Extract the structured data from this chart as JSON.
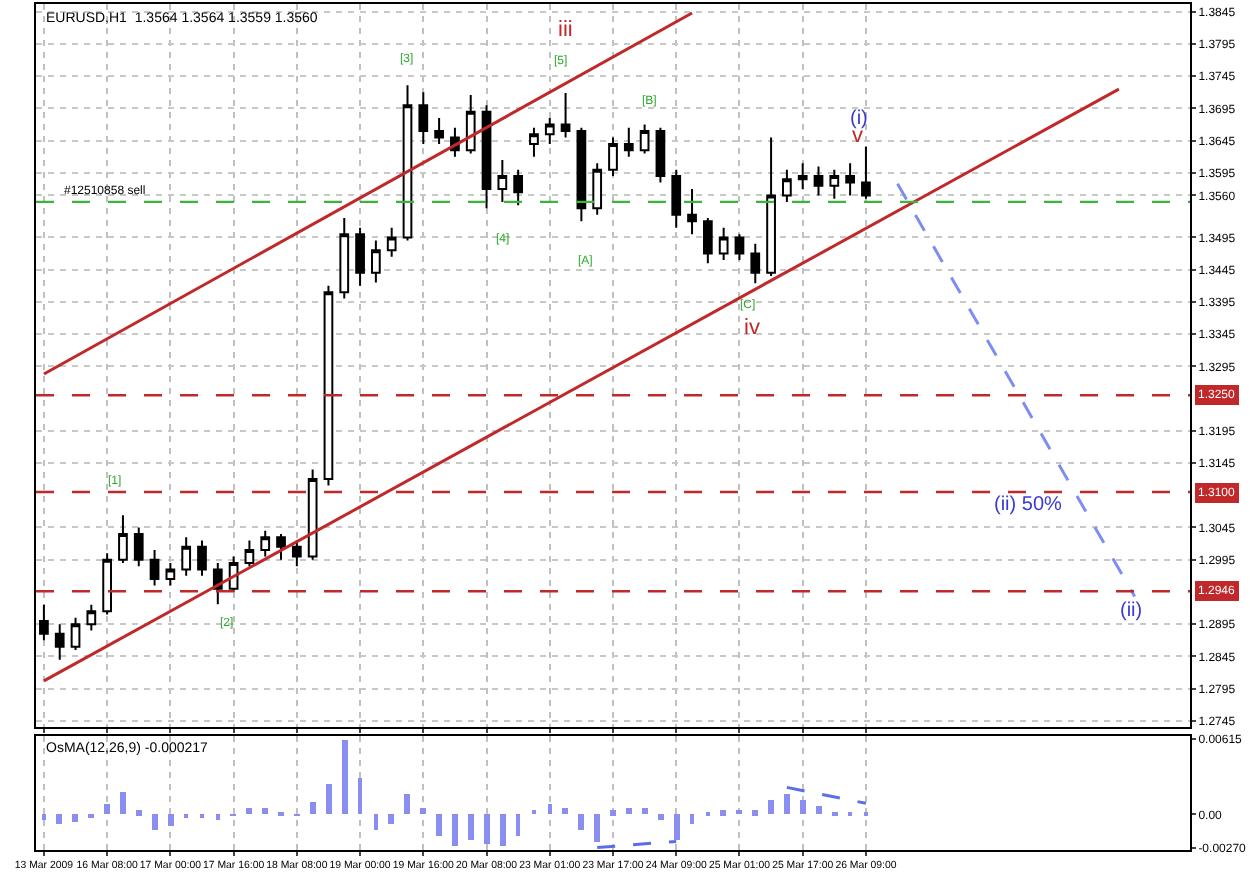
{
  "chart_data": [
    {
      "type": "candlestick",
      "title": "EURUSD,H1  1.3564 1.3564 1.3559 1.3560",
      "categories": [
        "13 Mar 2009",
        null,
        null,
        null,
        "16 Mar 08:00",
        null,
        null,
        null,
        "17 Mar 00:00",
        null,
        null,
        null,
        "17 Mar 16:00",
        null,
        null,
        null,
        "18 Mar 08:00",
        null,
        null,
        null,
        "19 Mar 00:00",
        null,
        null,
        null,
        "19 Mar 16:00",
        null,
        null,
        null,
        "20 Mar 08:00",
        null,
        null,
        null,
        "23 Mar 01:00",
        null,
        null,
        null,
        "23 Mar 17:00",
        null,
        null,
        null,
        "24 Mar 09:00",
        null,
        null,
        null,
        "25 Mar 01:00",
        null,
        null,
        null,
        "25 Mar 17:00",
        null,
        null,
        null,
        "26 Mar 09:00",
        null,
        null,
        null,
        null,
        null,
        null,
        null,
        null,
        null,
        null,
        null,
        null,
        null,
        null,
        null,
        null,
        null,
        null,
        null,
        null
      ],
      "series": [
        {
          "color": "#000000",
          "ohlc": [
            [
              1.29,
              1.2925,
              1.287,
              1.288
            ],
            [
              1.288,
              1.2895,
              1.284,
              1.286
            ],
            [
              1.286,
              1.2905,
              1.2855,
              1.2895
            ],
            [
              1.2895,
              1.2925,
              1.2885,
              1.2915
            ],
            [
              1.2915,
              1.3005,
              1.291,
              1.2995
            ],
            [
              1.2995,
              1.3064,
              1.299,
              1.3035
            ],
            [
              1.3035,
              1.3045,
              1.2985,
              1.2995
            ],
            [
              1.2995,
              1.301,
              1.2955,
              1.2965
            ],
            [
              1.2965,
              1.299,
              1.2955,
              1.298
            ],
            [
              1.298,
              1.303,
              1.297,
              1.3015
            ],
            [
              1.3015,
              1.3025,
              1.297,
              1.298
            ],
            [
              1.298,
              1.299,
              1.2926,
              1.295
            ],
            [
              1.295,
              1.3,
              1.2945,
              1.299
            ],
            [
              1.299,
              1.3025,
              1.2985,
              1.301
            ],
            [
              1.301,
              1.304,
              1.3,
              1.303
            ],
            [
              1.303,
              1.3035,
              1.2995,
              1.3015
            ],
            [
              1.3015,
              1.3025,
              1.2985,
              1.3
            ],
            [
              1.3,
              1.3135,
              1.2995,
              1.312
            ],
            [
              1.312,
              1.342,
              1.311,
              1.341
            ],
            [
              1.341,
              1.3525,
              1.34,
              1.35
            ],
            [
              1.35,
              1.351,
              1.342,
              1.344
            ],
            [
              1.344,
              1.349,
              1.3425,
              1.3475
            ],
            [
              1.3475,
              1.351,
              1.3465,
              1.3495
            ],
            [
              1.3495,
              1.3731,
              1.349,
              1.37
            ],
            [
              1.37,
              1.372,
              1.364,
              1.366
            ],
            [
              1.366,
              1.368,
              1.364,
              1.365
            ],
            [
              1.365,
              1.3665,
              1.362,
              1.363
            ],
            [
              1.363,
              1.3716,
              1.3625,
              1.369
            ],
            [
              1.369,
              1.37,
              1.354,
              1.357
            ],
            [
              1.357,
              1.3615,
              1.355,
              1.359
            ],
            [
              1.359,
              1.36,
              1.3545,
              1.3565
            ],
            [
              1.364,
              1.3665,
              1.362,
              1.3655
            ],
            [
              1.3655,
              1.368,
              1.364,
              1.367
            ],
            [
              1.367,
              1.3719,
              1.365,
              1.366
            ],
            [
              1.366,
              1.3665,
              1.352,
              1.354
            ],
            [
              1.354,
              1.361,
              1.353,
              1.36
            ],
            [
              1.36,
              1.365,
              1.359,
              1.364
            ],
            [
              1.364,
              1.3665,
              1.362,
              1.363
            ],
            [
              1.363,
              1.367,
              1.3625,
              1.366
            ],
            [
              1.366,
              1.3665,
              1.358,
              1.359
            ],
            [
              1.359,
              1.36,
              1.351,
              1.353
            ],
            [
              1.353,
              1.357,
              1.35,
              1.352
            ],
            [
              1.352,
              1.3525,
              1.3455,
              1.347
            ],
            [
              1.347,
              1.351,
              1.346,
              1.3495
            ],
            [
              1.3495,
              1.35,
              1.346,
              1.347
            ],
            [
              1.347,
              1.3485,
              1.3424,
              1.344
            ],
            [
              1.344,
              1.365,
              1.3435,
              1.356
            ],
            [
              1.356,
              1.36,
              1.355,
              1.3585
            ],
            [
              1.3585,
              1.361,
              1.357,
              1.359
            ],
            [
              1.359,
              1.3605,
              1.356,
              1.3575
            ],
            [
              1.3575,
              1.36,
              1.3555,
              1.359
            ],
            [
              1.359,
              1.361,
              1.356,
              1.358
            ],
            [
              1.358,
              1.3636,
              1.3555,
              1.356
            ],
            null,
            null,
            null,
            null,
            null,
            null,
            null,
            null,
            null,
            null,
            null,
            null,
            null,
            null,
            null,
            null,
            null,
            null,
            null,
            null
          ]
        },
        {
          "type": "line",
          "color": "#c0282a",
          "line_style": "solid",
          "values": [
            1.3283,
            null,
            null,
            null,
            null,
            null,
            null,
            null,
            null,
            null,
            null,
            null,
            null,
            null,
            null,
            null,
            null,
            null,
            null,
            null,
            null,
            null,
            null,
            null,
            null,
            null,
            null,
            null,
            null,
            null,
            null,
            null,
            null,
            null,
            null,
            null,
            null,
            null,
            null,
            null,
            null,
            1.3843,
            null,
            null,
            null,
            null,
            null,
            null,
            null,
            null,
            null,
            null,
            null,
            null,
            null,
            null,
            null,
            null,
            null,
            null,
            null,
            null,
            null,
            null,
            null,
            null,
            null,
            null,
            null,
            null,
            null,
            null,
            null
          ]
        },
        {
          "type": "line",
          "color": "#c0282a",
          "line_style": "solid",
          "values": [
            1.2807,
            null,
            null,
            null,
            null,
            null,
            null,
            null,
            null,
            null,
            null,
            null,
            null,
            null,
            null,
            null,
            null,
            null,
            null,
            null,
            null,
            null,
            null,
            null,
            null,
            null,
            null,
            null,
            null,
            null,
            null,
            null,
            null,
            null,
            null,
            null,
            null,
            null,
            null,
            null,
            null,
            null,
            null,
            null,
            null,
            null,
            null,
            null,
            null,
            null,
            null,
            null,
            null,
            null,
            null,
            null,
            null,
            null,
            null,
            null,
            null,
            null,
            null,
            null,
            null,
            null,
            null,
            null,
            1.3725,
            null,
            null,
            null,
            null
          ]
        },
        {
          "type": "line",
          "color": "#7d8ef0",
          "line_style": "dashed",
          "values": [
            null,
            null,
            null,
            null,
            null,
            null,
            null,
            null,
            null,
            null,
            null,
            null,
            null,
            null,
            null,
            null,
            null,
            null,
            null,
            null,
            null,
            null,
            null,
            null,
            null,
            null,
            null,
            null,
            null,
            null,
            null,
            null,
            null,
            null,
            null,
            null,
            null,
            null,
            null,
            null,
            null,
            null,
            null,
            null,
            null,
            null,
            null,
            null,
            null,
            null,
            null,
            null,
            null,
            null,
            1.3578,
            null,
            null,
            null,
            null,
            null,
            null,
            null,
            null,
            null,
            null,
            null,
            null,
            null,
            null,
            1.2938,
            null,
            null,
            null
          ]
        }
      ],
      "ylim": [
        1.2735,
        1.3857
      ],
      "yticks": [
        1.2745,
        1.2795,
        1.2845,
        1.2895,
        1.2995,
        1.3045,
        1.3145,
        1.3195,
        1.3295,
        1.3345,
        1.3395,
        1.3445,
        1.3495,
        {
          "value": 1.356,
          "label": "1.3560"
        },
        1.3595,
        1.3645,
        1.3695,
        1.3745,
        1.3795,
        1.3845
      ],
      "tick_labels": "y",
      "grid": true,
      "ref_lines": [
        {
          "axis": "y",
          "value": 1.355,
          "label": "#12510858 sell",
          "color": "#3cb43c",
          "line_style": "dashed"
        },
        {
          "axis": "y",
          "value": 1.325,
          "label": "1.3250",
          "color": "#c0282a",
          "line_style": "dashed"
        },
        {
          "axis": "y",
          "value": 1.31,
          "label": "1.3100",
          "color": "#c0282a",
          "line_style": "dashed"
        },
        {
          "axis": "y",
          "value": 1.2946,
          "label": "1.2946",
          "color": "#c0282a",
          "line_style": "dashed"
        }
      ],
      "annotations": [
        "[1]",
        "[2]",
        "[3]",
        "[4]",
        "[5]",
        "[A]",
        "[B]",
        "[C]",
        "iii",
        "iv",
        "v",
        "(i)",
        "(ii) 50%",
        "(ii)"
      ]
    },
    {
      "type": "bar",
      "title": "OsMA(12,26,9) -0.000217",
      "categories": [
        "13 Mar 2009",
        null,
        null,
        null,
        "16 Mar 08:00",
        null,
        null,
        null,
        "17 Mar 00:00",
        null,
        null,
        null,
        "17 Mar 16:00",
        null,
        null,
        null,
        "18 Mar 08:00",
        null,
        null,
        null,
        "19 Mar 00:00",
        null,
        null,
        null,
        "19 Mar 16:00",
        null,
        null,
        null,
        "20 Mar 08:00",
        null,
        null,
        null,
        "23 Mar 01:00",
        null,
        null,
        null,
        "23 Mar 17:00",
        null,
        null,
        null,
        "24 Mar 09:00",
        null,
        null,
        null,
        "25 Mar 01:00",
        null,
        null,
        null,
        "25 Mar 17:00",
        null,
        null,
        null,
        "26 Mar 09:00",
        null,
        null,
        null,
        null,
        null,
        null,
        null,
        null,
        null,
        null,
        null,
        null,
        null,
        null,
        null,
        null,
        null,
        null,
        null,
        null
      ],
      "series": [
        {
          "color": "#8a8ef0",
          "values": [
            -0.0005,
            -0.0007,
            -0.0006,
            -0.0003,
            0.0008,
            0.0018,
            0.0003,
            -0.0012,
            -0.001,
            -0.0002,
            -0.0003,
            -0.0005,
            -0.0001,
            0.0006,
            0.0005,
            0.0002,
            -0.0001,
            0.001,
            0.0025,
            0.0061,
            0.003,
            -0.0012,
            -0.0008,
            0.0016,
            0.0005,
            -0.0018,
            -0.0025,
            -0.002,
            -0.0024,
            -0.0025,
            -0.0018,
            0.0004,
            0.0009,
            0.0006,
            -0.0012,
            -0.0022,
            0.0003,
            0.0006,
            0.0006,
            -0.0004,
            -0.002,
            -0.0008,
            0.0001,
            0.0003,
            0.0004,
            0.0003,
            0.0012,
            0.0017,
            0.0012,
            0.0007,
            0.0002,
            0.0001,
            0.0001,
            null,
            null,
            null,
            null,
            null,
            null,
            null,
            null,
            null,
            null,
            null,
            null,
            null,
            null,
            null,
            null,
            null,
            null,
            null,
            null
          ]
        },
        {
          "type": "line",
          "color": "#5a6ee8",
          "line_style": "dashed",
          "values": [
            null,
            null,
            null,
            null,
            null,
            null,
            null,
            null,
            null,
            null,
            null,
            null,
            null,
            null,
            null,
            null,
            null,
            null,
            null,
            null,
            null,
            null,
            null,
            null,
            null,
            null,
            null,
            null,
            null,
            null,
            null,
            null,
            null,
            null,
            null,
            -0.0027,
            null,
            null,
            null,
            null,
            -0.0022,
            null,
            null,
            null,
            null,
            null,
            null,
            null,
            null,
            null,
            null,
            null,
            null,
            null,
            null,
            null,
            null,
            null,
            null,
            null,
            null,
            null,
            null,
            null,
            null,
            null,
            null,
            null,
            null,
            null,
            null,
            null,
            null
          ]
        },
        {
          "type": "line",
          "color": "#5a6ee8",
          "line_style": "dashed",
          "values": [
            null,
            null,
            null,
            null,
            null,
            null,
            null,
            null,
            null,
            null,
            null,
            null,
            null,
            null,
            null,
            null,
            null,
            null,
            null,
            null,
            null,
            null,
            null,
            null,
            null,
            null,
            null,
            null,
            null,
            null,
            null,
            null,
            null,
            null,
            null,
            null,
            null,
            null,
            null,
            null,
            null,
            null,
            null,
            null,
            null,
            null,
            null,
            0.0022,
            null,
            null,
            null,
            null,
            0.0009,
            null,
            null,
            null,
            null,
            null,
            null,
            null,
            null,
            null,
            null,
            null,
            null,
            null,
            null,
            null,
            null,
            null,
            null,
            null,
            null
          ]
        }
      ],
      "ylim": [
        -0.0029,
        0.0064
      ],
      "yticks": [
        {
          "value": -0.0027,
          "label": "-0.00270"
        },
        {
          "value": 0,
          "label": "0.00"
        },
        {
          "value": 0.00615,
          "label": "0.00615"
        }
      ],
      "grid": "x"
    }
  ]
}
